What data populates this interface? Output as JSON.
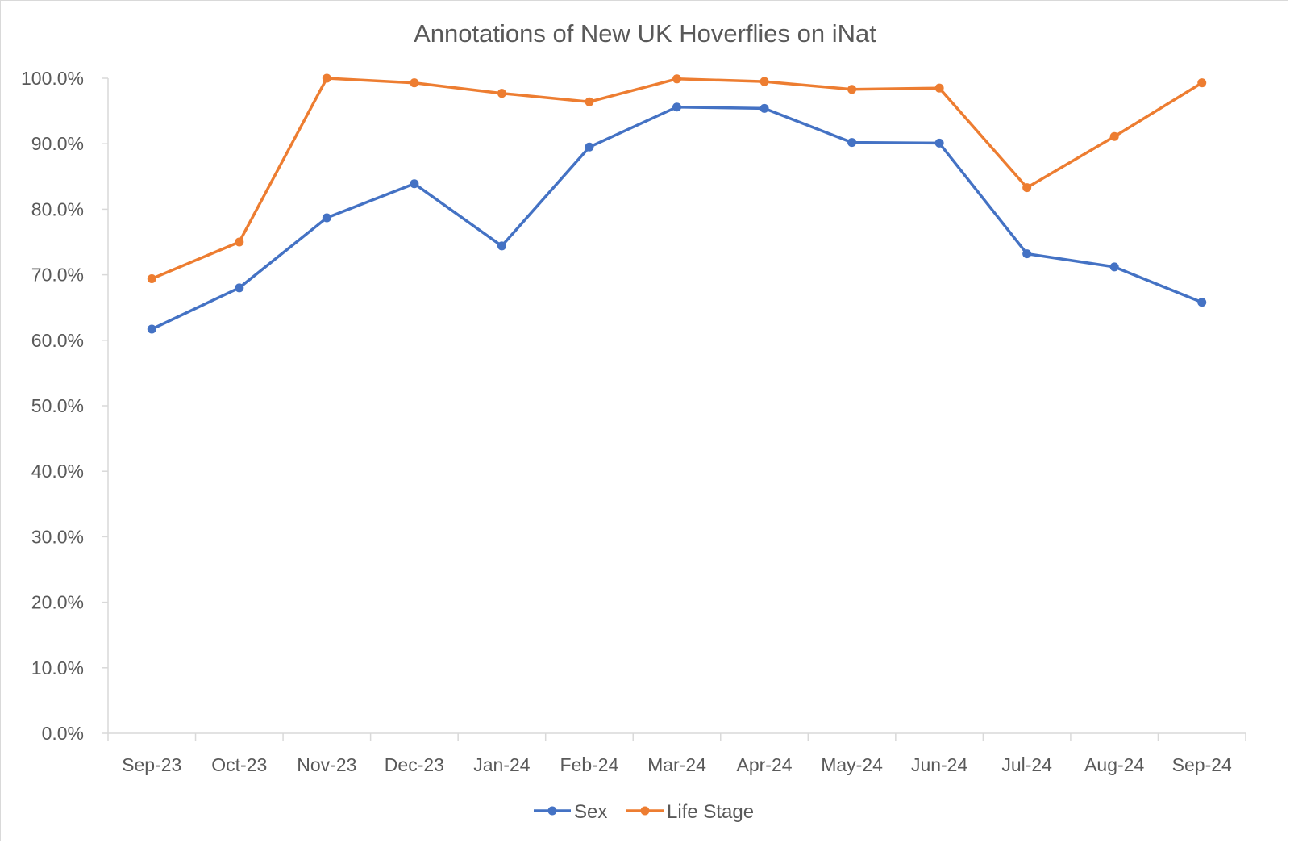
{
  "chart_data": {
    "type": "line",
    "title": "Annotations of New UK Hoverflies on iNat",
    "xlabel": "",
    "ylabel": "",
    "categories": [
      "Sep-23",
      "Oct-23",
      "Nov-23",
      "Dec-23",
      "Jan-24",
      "Feb-24",
      "Mar-24",
      "Apr-24",
      "May-24",
      "Jun-24",
      "Jul-24",
      "Aug-24",
      "Sep-24"
    ],
    "ylim": [
      0,
      100
    ],
    "ytick_labels": [
      "0.0%",
      "10.0%",
      "20.0%",
      "30.0%",
      "40.0%",
      "50.0%",
      "60.0%",
      "70.0%",
      "80.0%",
      "90.0%",
      "100.0%"
    ],
    "grid": false,
    "legend_position": "bottom",
    "series": [
      {
        "name": "Sex",
        "color": "#4472c4",
        "values": [
          61.7,
          68.0,
          78.7,
          83.9,
          74.4,
          89.5,
          95.6,
          95.4,
          90.2,
          90.1,
          73.2,
          71.2,
          65.8
        ]
      },
      {
        "name": "Life Stage",
        "color": "#ed7d31",
        "values": [
          69.4,
          75.0,
          100.0,
          99.3,
          97.7,
          96.4,
          99.9,
          99.5,
          98.3,
          98.5,
          83.3,
          91.1,
          99.3
        ]
      }
    ]
  }
}
